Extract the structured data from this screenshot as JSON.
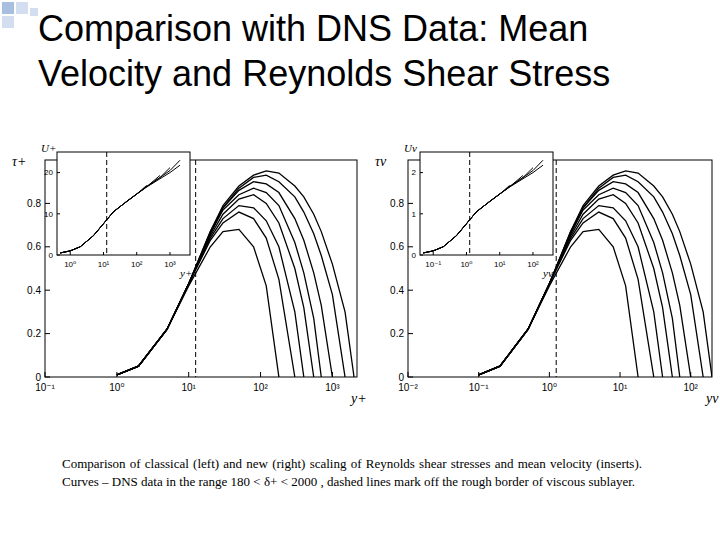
{
  "slide": {
    "title": "Comparison with DNS Data: Mean Velocity and Reynolds Shear Stress",
    "caption": "Comparison of classical (left) and new (right) scaling of Reynolds shear stresses and mean velocity (inserts). Curves – DNS data in the range 180 < δ+ < 2000 , dashed lines mark off the rough border of viscous sublayer."
  },
  "chart_data": [
    {
      "type": "line",
      "x_label": "y+",
      "y_label": "τ+",
      "log": "x",
      "reference_x": 12.5,
      "xlim": [
        0.1,
        2200
      ],
      "ylim": [
        0,
        1
      ],
      "xticks": [
        {
          "value": 0.1,
          "label": "10⁻¹"
        },
        {
          "value": 1,
          "label": "10⁰"
        },
        {
          "value": 10,
          "label": "10¹"
        },
        {
          "value": 100,
          "label": "10²"
        },
        {
          "value": 1000,
          "label": "10³"
        }
      ],
      "yticks": [
        0,
        0.2,
        0.4,
        0.6,
        0.8
      ],
      "x": [
        1,
        2,
        5,
        10,
        20,
        30,
        50,
        80,
        120,
        180,
        300,
        400,
        550,
        700,
        1000,
        1500,
        2000
      ],
      "series": [
        {
          "color": "#000000",
          "values": [
            0.01,
            0.05,
            0.22,
            0.42,
            0.6,
            0.67,
            0.68,
            0.6,
            0.42,
            0,
            null,
            null,
            null,
            null,
            null,
            null,
            null
          ]
        },
        {
          "color": "#000000",
          "values": [
            0.01,
            0.05,
            0.22,
            0.43,
            0.63,
            0.71,
            0.76,
            0.73,
            0.64,
            0.45,
            0,
            null,
            null,
            null,
            null,
            null,
            null
          ]
        },
        {
          "color": "#000000",
          "values": [
            0.01,
            0.05,
            0.22,
            0.43,
            0.64,
            0.73,
            0.79,
            0.78,
            0.72,
            0.6,
            0.3,
            0,
            null,
            null,
            null,
            null,
            null
          ]
        },
        {
          "color": "#000000",
          "values": [
            0.01,
            0.05,
            0.22,
            0.43,
            0.65,
            0.75,
            0.82,
            0.84,
            0.8,
            0.71,
            0.5,
            0.32,
            0,
            null,
            null,
            null,
            null
          ]
        },
        {
          "color": "#000000",
          "values": [
            0.01,
            0.05,
            0.22,
            0.43,
            0.66,
            0.77,
            0.84,
            0.87,
            0.85,
            0.79,
            0.62,
            0.48,
            0.27,
            0,
            null,
            null,
            null
          ]
        },
        {
          "color": "#000000",
          "values": [
            0.01,
            0.05,
            0.22,
            0.43,
            0.66,
            0.78,
            0.86,
            0.9,
            0.89,
            0.85,
            0.73,
            0.63,
            0.48,
            0.33,
            0,
            null,
            null
          ]
        },
        {
          "color": "#000000",
          "values": [
            0.01,
            0.05,
            0.22,
            0.43,
            0.67,
            0.78,
            0.87,
            0.92,
            0.93,
            0.9,
            0.83,
            0.76,
            0.66,
            0.56,
            0.38,
            0,
            null
          ]
        },
        {
          "color": "#000000",
          "values": [
            0.01,
            0.05,
            0.22,
            0.43,
            0.67,
            0.79,
            0.88,
            0.93,
            0.95,
            0.94,
            0.88,
            0.83,
            0.75,
            0.67,
            0.52,
            0.3,
            0
          ]
        }
      ]
    },
    {
      "type": "line",
      "x_label": "y+",
      "y_label": "U+",
      "log": "x",
      "reference_x": 12.5,
      "xlim": [
        0.4,
        4000
      ],
      "ylim": [
        0,
        25
      ],
      "xticks": [
        {
          "value": 1,
          "label": "10⁰"
        },
        {
          "value": 10,
          "label": "10¹"
        },
        {
          "value": 100,
          "label": "10²"
        },
        {
          "value": 1000,
          "label": "10³"
        }
      ],
      "yticks": [
        0,
        10,
        20
      ],
      "x": [
        0.5,
        1,
        2,
        5,
        10,
        20,
        50,
        100,
        200,
        500,
        1000,
        2000
      ],
      "series": [
        {
          "color": "#000000",
          "values": [
            0.5,
            1,
            2,
            4.7,
            7.6,
            10.5,
            13,
            14.8,
            16.9,
            null,
            null,
            null
          ]
        },
        {
          "color": "#000000",
          "values": [
            0.5,
            1,
            2,
            4.7,
            7.6,
            10.5,
            13,
            14.8,
            16.6,
            19.3,
            null,
            null
          ]
        },
        {
          "color": "#000000",
          "values": [
            0.5,
            1,
            2,
            4.7,
            7.6,
            10.5,
            13,
            14.8,
            16.6,
            18.8,
            21.2,
            null
          ]
        },
        {
          "color": "#000000",
          "values": [
            0.5,
            1,
            2,
            4.7,
            7.6,
            10.5,
            13,
            14.8,
            16.6,
            18.8,
            20.5,
            23.0
          ]
        },
        {
          "color": "#000000",
          "values": [
            0.5,
            1,
            2,
            4.7,
            7.6,
            10.5,
            13,
            14.8,
            16.5,
            18.5,
            20.0,
            21.8
          ]
        }
      ]
    },
    {
      "type": "line",
      "x_label": "yv",
      "y_label": "τv",
      "log": "x",
      "reference_x": 1.25,
      "xlim": [
        0.01,
        200
      ],
      "ylim": [
        0,
        1
      ],
      "xticks": [
        {
          "value": 0.01,
          "label": "10⁻²"
        },
        {
          "value": 0.1,
          "label": "10⁻¹"
        },
        {
          "value": 1,
          "label": "10⁰"
        },
        {
          "value": 10,
          "label": "10¹"
        },
        {
          "value": 100,
          "label": "10²"
        }
      ],
      "yticks": [
        0,
        0.2,
        0.4,
        0.6,
        0.8
      ],
      "x": [
        0.1,
        0.2,
        0.5,
        1,
        2,
        3,
        5,
        8,
        12,
        18,
        30,
        40,
        55,
        70,
        100,
        150,
        200
      ],
      "series": [
        {
          "color": "#000000",
          "values": [
            0.01,
            0.05,
            0.22,
            0.42,
            0.6,
            0.67,
            0.68,
            0.6,
            0.42,
            0,
            null,
            null,
            null,
            null,
            null,
            null,
            null
          ]
        },
        {
          "color": "#000000",
          "values": [
            0.01,
            0.05,
            0.22,
            0.43,
            0.63,
            0.71,
            0.76,
            0.73,
            0.64,
            0.45,
            0,
            null,
            null,
            null,
            null,
            null,
            null
          ]
        },
        {
          "color": "#000000",
          "values": [
            0.01,
            0.05,
            0.22,
            0.43,
            0.64,
            0.73,
            0.79,
            0.78,
            0.72,
            0.6,
            0.3,
            0,
            null,
            null,
            null,
            null,
            null
          ]
        },
        {
          "color": "#000000",
          "values": [
            0.01,
            0.05,
            0.22,
            0.43,
            0.65,
            0.75,
            0.82,
            0.84,
            0.8,
            0.71,
            0.5,
            0.32,
            0,
            null,
            null,
            null,
            null
          ]
        },
        {
          "color": "#000000",
          "values": [
            0.01,
            0.05,
            0.22,
            0.43,
            0.66,
            0.77,
            0.84,
            0.87,
            0.85,
            0.79,
            0.62,
            0.48,
            0.27,
            0,
            null,
            null,
            null
          ]
        },
        {
          "color": "#000000",
          "values": [
            0.01,
            0.05,
            0.22,
            0.43,
            0.66,
            0.78,
            0.86,
            0.9,
            0.89,
            0.85,
            0.73,
            0.63,
            0.48,
            0.33,
            0,
            null,
            null
          ]
        },
        {
          "color": "#000000",
          "values": [
            0.01,
            0.05,
            0.22,
            0.43,
            0.67,
            0.78,
            0.87,
            0.92,
            0.93,
            0.9,
            0.83,
            0.76,
            0.66,
            0.56,
            0.38,
            0,
            null
          ]
        },
        {
          "color": "#000000",
          "values": [
            0.01,
            0.05,
            0.22,
            0.43,
            0.67,
            0.79,
            0.88,
            0.93,
            0.95,
            0.94,
            0.88,
            0.83,
            0.75,
            0.67,
            0.52,
            0.3,
            0
          ]
        }
      ]
    },
    {
      "type": "line",
      "x_label": "yv",
      "y_label": "Uv",
      "log": "x",
      "reference_x": 1.25,
      "xlim": [
        0.04,
        400
      ],
      "ylim": [
        0,
        2.5
      ],
      "xticks": [
        {
          "value": 0.1,
          "label": "10⁻¹"
        },
        {
          "value": 1,
          "label": "10⁰"
        },
        {
          "value": 10,
          "label": "10¹"
        },
        {
          "value": 100,
          "label": "10²"
        }
      ],
      "yticks": [
        0,
        1,
        2
      ],
      "x": [
        0.05,
        0.1,
        0.2,
        0.5,
        1,
        2,
        5,
        10,
        20,
        50,
        100,
        200
      ],
      "series": [
        {
          "color": "#000000",
          "values": [
            0.05,
            0.1,
            0.2,
            0.47,
            0.76,
            1.05,
            1.3,
            1.48,
            1.69,
            null,
            null,
            null
          ]
        },
        {
          "color": "#000000",
          "values": [
            0.05,
            0.1,
            0.2,
            0.47,
            0.76,
            1.05,
            1.3,
            1.48,
            1.66,
            1.93,
            null,
            null
          ]
        },
        {
          "color": "#000000",
          "values": [
            0.05,
            0.1,
            0.2,
            0.47,
            0.76,
            1.05,
            1.3,
            1.48,
            1.66,
            1.88,
            2.12,
            null
          ]
        },
        {
          "color": "#000000",
          "values": [
            0.05,
            0.1,
            0.2,
            0.47,
            0.76,
            1.05,
            1.3,
            1.48,
            1.66,
            1.88,
            2.05,
            2.3
          ]
        },
        {
          "color": "#000000",
          "values": [
            0.05,
            0.1,
            0.2,
            0.47,
            0.76,
            1.05,
            1.3,
            1.48,
            1.65,
            1.85,
            2.0,
            2.18
          ]
        }
      ]
    }
  ]
}
